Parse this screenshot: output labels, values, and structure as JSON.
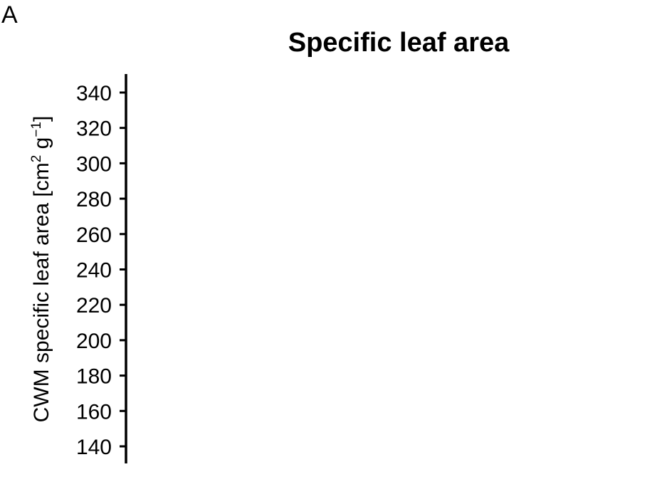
{
  "panel_label": "A",
  "chart_data": {
    "type": "scatter",
    "title": "Specific leaf area",
    "xlabel": "",
    "ylabel": {
      "text": "CWM specific leaf area [cm",
      "sup1": "2",
      "mid": " g",
      "sup2": "−1",
      "end": "]"
    },
    "ylim": [
      130,
      350
    ],
    "yticks": [
      140,
      160,
      180,
      200,
      220,
      240,
      260,
      280,
      300,
      320,
      340
    ],
    "series": [],
    "grid": false,
    "legend": "none"
  }
}
